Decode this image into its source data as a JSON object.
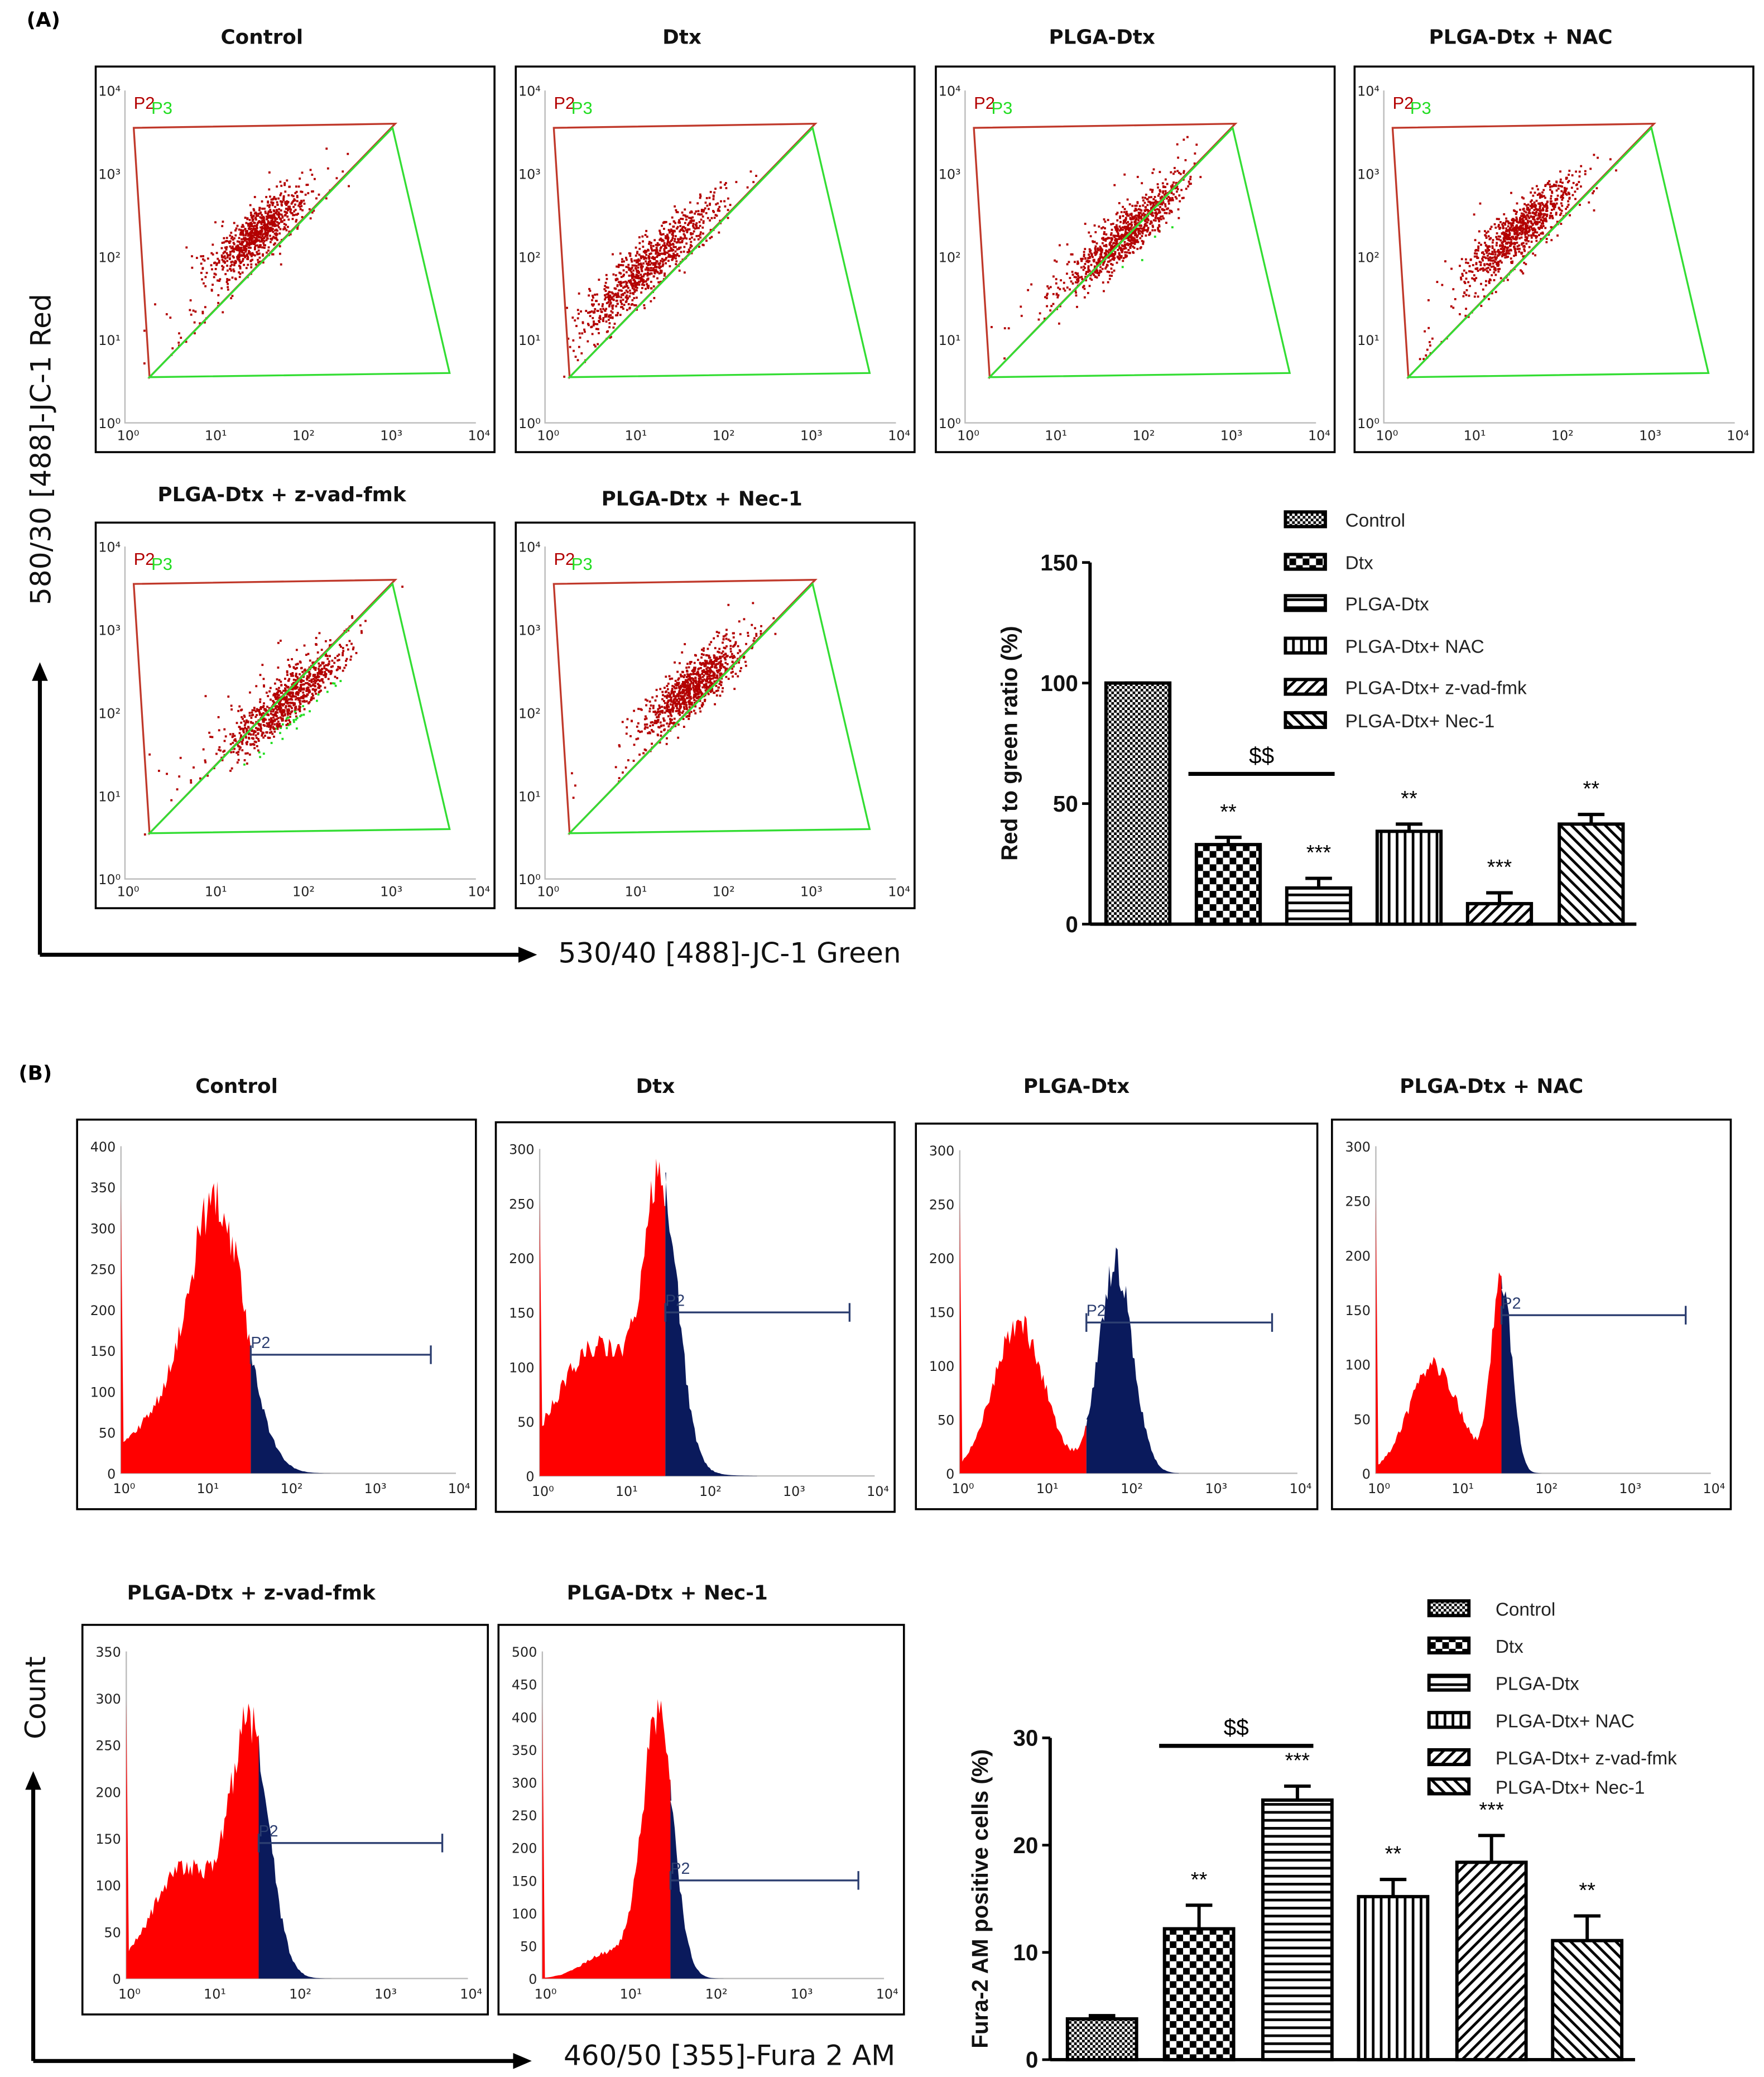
{
  "panel_labels": {
    "a": "(A)",
    "b": "(B)"
  },
  "panel_a": {
    "y_axis_label": "580/30 [488]-JC-1 Red",
    "x_axis_label": "530/40 [488]-JC-1 Green",
    "plots": [
      {
        "title": "Control",
        "gates": [
          "P2",
          "P3"
        ]
      },
      {
        "title": "Dtx",
        "gates": [
          "P2",
          "P3"
        ]
      },
      {
        "title": "PLGA-Dtx",
        "gates": [
          "P2",
          "P3"
        ]
      },
      {
        "title": "PLGA-Dtx + NAC",
        "gates": [
          "P2",
          "P3"
        ]
      },
      {
        "title": "PLGA-Dtx  + z-vad-fmk",
        "gates": [
          "P2",
          "P3"
        ]
      },
      {
        "title": "PLGA-Dtx  + Nec-1",
        "gates": [
          "P2",
          "P3"
        ]
      }
    ],
    "axis_ticks": [
      "10⁰",
      "10¹",
      "10²",
      "10³",
      "10⁴"
    ],
    "colors": {
      "p2": "#b30000",
      "p3": "#22dd22",
      "gate_p2": "#c0392b",
      "gate_p3": "#33dd33"
    }
  },
  "panel_b": {
    "y_axis_label": "Count",
    "x_axis_label": "460/50 [355]-Fura 2 AM",
    "plots": [
      {
        "title": "Control",
        "gate": "P2",
        "ymax": 400
      },
      {
        "title": "Dtx",
        "gate": "P2",
        "ymax": 300
      },
      {
        "title": "PLGA-Dtx",
        "gate": "P2",
        "ymax": 300
      },
      {
        "title": "PLGA-Dtx + NAC",
        "gate": "P2",
        "ymax": 300
      },
      {
        "title": "PLGA-Dtx  + z-vad-fmk",
        "gate": "P2",
        "ymax": 350
      },
      {
        "title": "PLGA-Dtx  + Nec-1",
        "gate": "P2",
        "ymax": 500
      }
    ],
    "axis_ticks": [
      "10⁰",
      "10¹",
      "10²",
      "10³",
      "10⁴"
    ],
    "colors": {
      "negative": "#ff0000",
      "positive": "#0a1a5c",
      "gate": "#2c3e70"
    }
  },
  "chart_data": [
    {
      "type": "bar",
      "ylabel": "Red to green ratio (%)",
      "ylim": [
        0,
        150
      ],
      "yticks": [
        "0",
        "50",
        "100",
        "150"
      ],
      "categories": [
        "Control",
        "Dtx",
        "PLGA-Dtx",
        "PLGA-Dtx+ NAC",
        "PLGA-Dtx+ z-vad-fmk",
        "PLGA-Dtx+ Nec-1"
      ],
      "values": [
        100,
        33,
        15,
        38.5,
        8.5,
        41.5
      ],
      "errors": [
        0,
        3,
        4,
        3,
        4.5,
        4
      ],
      "significance": [
        "",
        "**",
        "***",
        "**",
        "***",
        "**"
      ],
      "bracket": {
        "label": "$$",
        "from": "Dtx",
        "to": "PLGA-Dtx"
      },
      "legend": "top-right"
    },
    {
      "type": "bar",
      "ylabel": "Fura-2 AM positive cells (%)",
      "ylim": [
        0,
        30
      ],
      "yticks": [
        "0",
        "10",
        "20",
        "30"
      ],
      "categories": [
        "Control",
        "Dtx",
        "PLGA-Dtx",
        "PLGA-Dtx+ NAC",
        "PLGA-Dtx+ z-vad-fmk",
        "PLGA-Dtx+ Nec-1"
      ],
      "values": [
        3.8,
        12.2,
        24.2,
        15.2,
        18.4,
        11.1
      ],
      "errors": [
        0.3,
        2.2,
        1.3,
        1.6,
        2.5,
        2.3
      ],
      "significance": [
        "",
        "**",
        "***",
        "**",
        "***",
        "**"
      ],
      "bracket": {
        "label": "$$",
        "from": "Dtx",
        "to": "PLGA-Dtx"
      },
      "legend": "top-right"
    }
  ]
}
